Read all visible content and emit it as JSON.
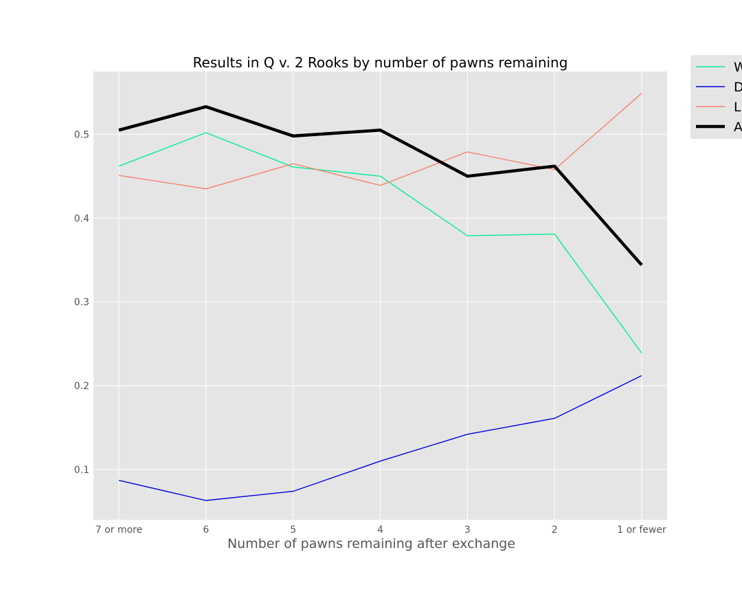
{
  "chart_data": {
    "type": "line",
    "title": "Results in Q v. 2 Rooks by number of pawns remaining",
    "xlabel": "Number of pawns remaining after exchange",
    "ylabel": "",
    "categories": [
      "7 or more",
      "6",
      "5",
      "4",
      "3",
      "2",
      "1 or fewer"
    ],
    "ylim": [
      0.04,
      0.575
    ],
    "yticks": [
      "0.1",
      "0.2",
      "0.3",
      "0.4",
      "0.5"
    ],
    "grid": true,
    "legend_position": "top-right",
    "series": [
      {
        "name": "W",
        "color": "#00ee90",
        "width": "thin",
        "values": [
          0.462,
          0.502,
          0.461,
          0.45,
          0.379,
          0.381,
          0.239
        ]
      },
      {
        "name": "D",
        "color": "#0000dd",
        "width": "thin",
        "values": [
          0.087,
          0.063,
          0.074,
          0.11,
          0.142,
          0.161,
          0.212
        ]
      },
      {
        "name": "L",
        "color": "#f78070",
        "width": "thin",
        "values": [
          0.451,
          0.435,
          0.465,
          0.439,
          0.479,
          0.458,
          0.549
        ]
      },
      {
        "name": "A",
        "color": "#000000",
        "width": "thick",
        "values": [
          0.505,
          0.533,
          0.498,
          0.505,
          0.45,
          0.462,
          0.344
        ]
      }
    ]
  }
}
